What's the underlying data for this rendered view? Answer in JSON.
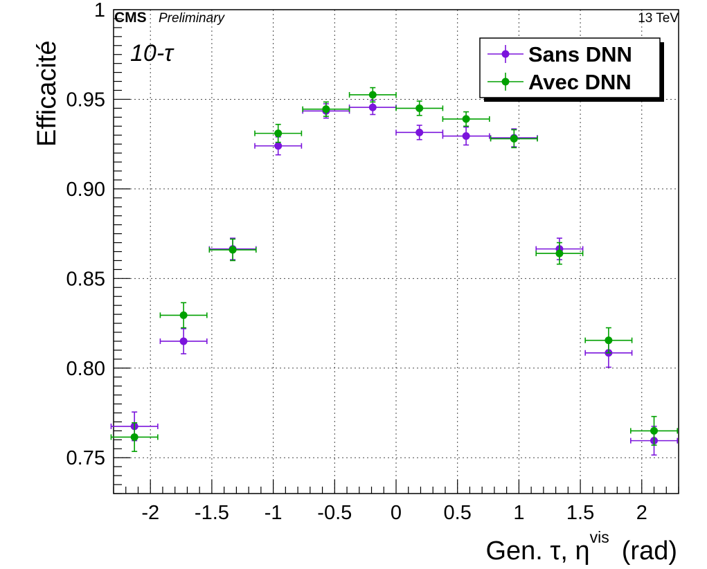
{
  "header": {
    "experiment": "CMS",
    "status": "Preliminary",
    "energy": "13 TeV"
  },
  "annotation": "10-τ",
  "chart_data": {
    "type": "scatter",
    "xlabel": "Gen. τ, η",
    "xlabel_sup": "vis",
    "xlabel_unit": "(rad)",
    "ylabel": "Efficacité",
    "xlim": [
      -2.3,
      2.3
    ],
    "ylim": [
      0.73,
      1.0
    ],
    "xticks": [
      -2,
      -1.5,
      -1,
      -0.5,
      0,
      0.5,
      1,
      1.5,
      2
    ],
    "xtick_labels": [
      "-2",
      "-1.5",
      "-1",
      "-0.5",
      "0",
      "0.5",
      "1",
      "1.5",
      "2"
    ],
    "yticks": [
      0.75,
      0.8,
      0.85,
      0.9,
      0.95,
      1.0
    ],
    "ytick_labels": [
      "0.75",
      "0.80",
      "0.85",
      "0.90",
      "0.95",
      "1"
    ],
    "grid": true,
    "legend_position": "top-right",
    "series": [
      {
        "name": "Sans DNN",
        "color": "#7b14dc",
        "points": [
          {
            "x": -2.13,
            "xerr": 0.19,
            "y": 0.7675,
            "yerr": 0.008
          },
          {
            "x": -1.73,
            "xerr": 0.19,
            "y": 0.815,
            "yerr": 0.007
          },
          {
            "x": -1.33,
            "xerr": 0.19,
            "y": 0.8665,
            "yerr": 0.006
          },
          {
            "x": -0.96,
            "xerr": 0.19,
            "y": 0.924,
            "yerr": 0.005
          },
          {
            "x": -0.57,
            "xerr": 0.19,
            "y": 0.9435,
            "yerr": 0.004
          },
          {
            "x": -0.19,
            "xerr": 0.19,
            "y": 0.9455,
            "yerr": 0.004
          },
          {
            "x": 0.19,
            "xerr": 0.19,
            "y": 0.9315,
            "yerr": 0.004
          },
          {
            "x": 0.57,
            "xerr": 0.19,
            "y": 0.9295,
            "yerr": 0.005
          },
          {
            "x": 0.96,
            "xerr": 0.19,
            "y": 0.9285,
            "yerr": 0.005
          },
          {
            "x": 1.33,
            "xerr": 0.19,
            "y": 0.8665,
            "yerr": 0.006
          },
          {
            "x": 1.73,
            "xerr": 0.19,
            "y": 0.8085,
            "yerr": 0.008
          },
          {
            "x": 2.1,
            "xerr": 0.19,
            "y": 0.7595,
            "yerr": 0.008
          }
        ]
      },
      {
        "name": "Avec DNN",
        "color": "#00a000",
        "points": [
          {
            "x": -2.13,
            "xerr": 0.19,
            "y": 0.7615,
            "yerr": 0.008
          },
          {
            "x": -1.73,
            "xerr": 0.19,
            "y": 0.8295,
            "yerr": 0.007
          },
          {
            "x": -1.33,
            "xerr": 0.19,
            "y": 0.866,
            "yerr": 0.006
          },
          {
            "x": -0.96,
            "xerr": 0.19,
            "y": 0.931,
            "yerr": 0.005
          },
          {
            "x": -0.57,
            "xerr": 0.19,
            "y": 0.9445,
            "yerr": 0.004
          },
          {
            "x": -0.19,
            "xerr": 0.19,
            "y": 0.9525,
            "yerr": 0.004
          },
          {
            "x": 0.19,
            "xerr": 0.19,
            "y": 0.945,
            "yerr": 0.004
          },
          {
            "x": 0.57,
            "xerr": 0.19,
            "y": 0.939,
            "yerr": 0.004
          },
          {
            "x": 0.96,
            "xerr": 0.19,
            "y": 0.928,
            "yerr": 0.005
          },
          {
            "x": 1.33,
            "xerr": 0.19,
            "y": 0.864,
            "yerr": 0.006
          },
          {
            "x": 1.73,
            "xerr": 0.19,
            "y": 0.8155,
            "yerr": 0.007
          },
          {
            "x": 2.1,
            "xerr": 0.19,
            "y": 0.765,
            "yerr": 0.008
          }
        ]
      }
    ]
  }
}
